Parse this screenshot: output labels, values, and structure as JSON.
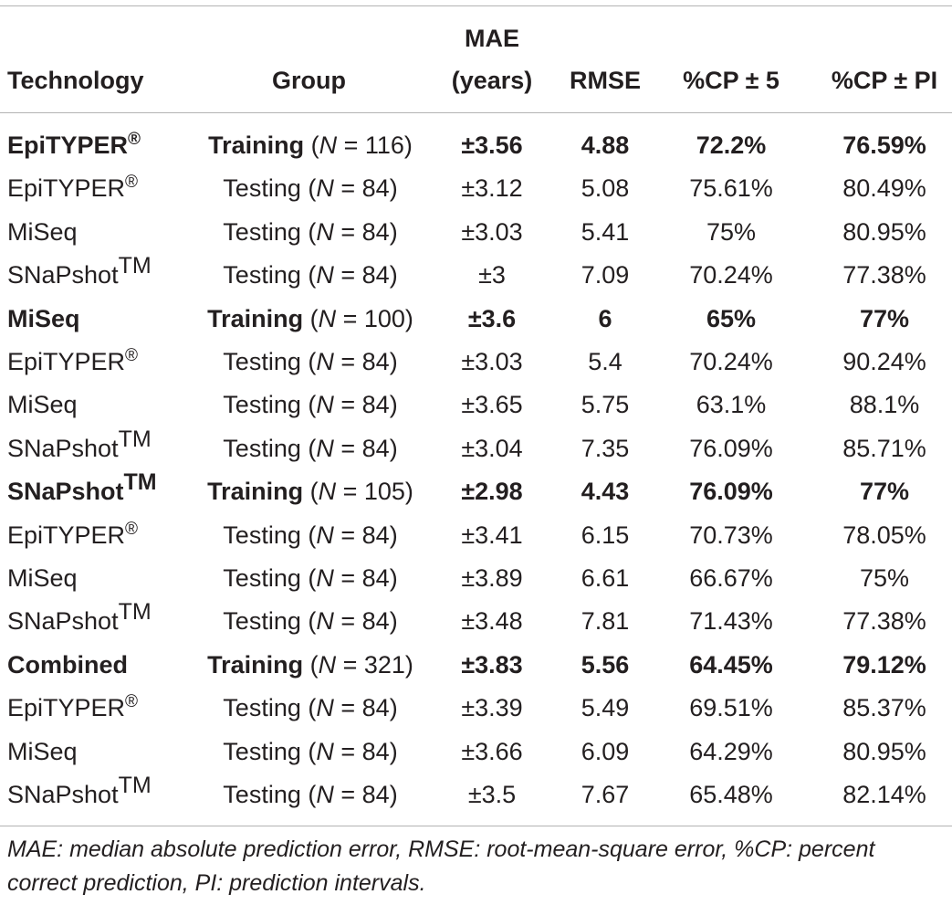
{
  "headers": {
    "technology": "Technology",
    "group": "Group",
    "mae_line1": "MAE",
    "mae_line2": "(years)",
    "rmse": "RMSE",
    "cp5": "%CP ± 5",
    "cppi": "%CP ± PI"
  },
  "rows": [
    {
      "bold": true,
      "tech": "EpiTYPER",
      "mark": "®",
      "group": "Training",
      "n": "116",
      "mae": "±3.56",
      "rmse": "4.88",
      "cp5": "72.2%",
      "cppi": "76.59%"
    },
    {
      "bold": false,
      "tech": "EpiTYPER",
      "mark": "®",
      "group": "Testing",
      "n": "84",
      "mae": "±3.12",
      "rmse": "5.08",
      "cp5": "75.61%",
      "cppi": "80.49%"
    },
    {
      "bold": false,
      "tech": "MiSeq",
      "mark": "",
      "group": "Testing",
      "n": "84",
      "mae": "±3.03",
      "rmse": "5.41",
      "cp5": "75%",
      "cppi": "80.95%"
    },
    {
      "bold": false,
      "tech": "SNaPshot",
      "mark": "TM",
      "group": "Testing",
      "n": "84",
      "mae": "±3",
      "rmse": "7.09",
      "cp5": "70.24%",
      "cppi": "77.38%"
    },
    {
      "bold": true,
      "tech": "MiSeq",
      "mark": "",
      "group": "Training",
      "n": "100",
      "mae": "±3.6",
      "rmse": "6",
      "cp5": "65%",
      "cppi": "77%"
    },
    {
      "bold": false,
      "tech": "EpiTYPER",
      "mark": "®",
      "group": "Testing",
      "n": "84",
      "mae": "±3.03",
      "rmse": "5.4",
      "cp5": "70.24%",
      "cppi": "90.24%"
    },
    {
      "bold": false,
      "tech": "MiSeq",
      "mark": "",
      "group": "Testing",
      "n": "84",
      "mae": "±3.65",
      "rmse": "5.75",
      "cp5": "63.1%",
      "cppi": "88.1%"
    },
    {
      "bold": false,
      "tech": "SNaPshot",
      "mark": "TM",
      "group": "Testing",
      "n": "84",
      "mae": "±3.04",
      "rmse": "7.35",
      "cp5": "76.09%",
      "cppi": "85.71%"
    },
    {
      "bold": true,
      "tech": "SNaPshot",
      "mark": "TM",
      "group": "Training",
      "n": "105",
      "mae": "±2.98",
      "rmse": "4.43",
      "cp5": "76.09%",
      "cppi": "77%"
    },
    {
      "bold": false,
      "tech": "EpiTYPER",
      "mark": "®",
      "group": "Testing",
      "n": "84",
      "mae": "±3.41",
      "rmse": "6.15",
      "cp5": "70.73%",
      "cppi": "78.05%"
    },
    {
      "bold": false,
      "tech": "MiSeq",
      "mark": "",
      "group": "Testing",
      "n": "84",
      "mae": "±3.89",
      "rmse": "6.61",
      "cp5": "66.67%",
      "cppi": "75%"
    },
    {
      "bold": false,
      "tech": "SNaPshot",
      "mark": "TM",
      "group": "Testing",
      "n": "84",
      "mae": "±3.48",
      "rmse": "7.81",
      "cp5": "71.43%",
      "cppi": "77.38%"
    },
    {
      "bold": true,
      "tech": "Combined",
      "mark": "",
      "group": "Training",
      "n": "321",
      "mae": "±3.83",
      "rmse": "5.56",
      "cp5": "64.45%",
      "cppi": "79.12%"
    },
    {
      "bold": false,
      "tech": "EpiTYPER",
      "mark": "®",
      "group": "Testing",
      "n": "84",
      "mae": "±3.39",
      "rmse": "5.49",
      "cp5": "69.51%",
      "cppi": "85.37%"
    },
    {
      "bold": false,
      "tech": "MiSeq",
      "mark": "",
      "group": "Testing",
      "n": "84",
      "mae": "±3.66",
      "rmse": "6.09",
      "cp5": "64.29%",
      "cppi": "80.95%"
    },
    {
      "bold": false,
      "tech": "SNaPshot",
      "mark": "TM",
      "group": "Testing",
      "n": "84",
      "mae": "±3.5",
      "rmse": "7.67",
      "cp5": "65.48%",
      "cppi": "82.14%"
    }
  ],
  "n_label": "N",
  "footnote": "MAE: median absolute prediction error, RMSE: root-mean-square error, %CP: percent correct prediction, PI: prediction intervals."
}
